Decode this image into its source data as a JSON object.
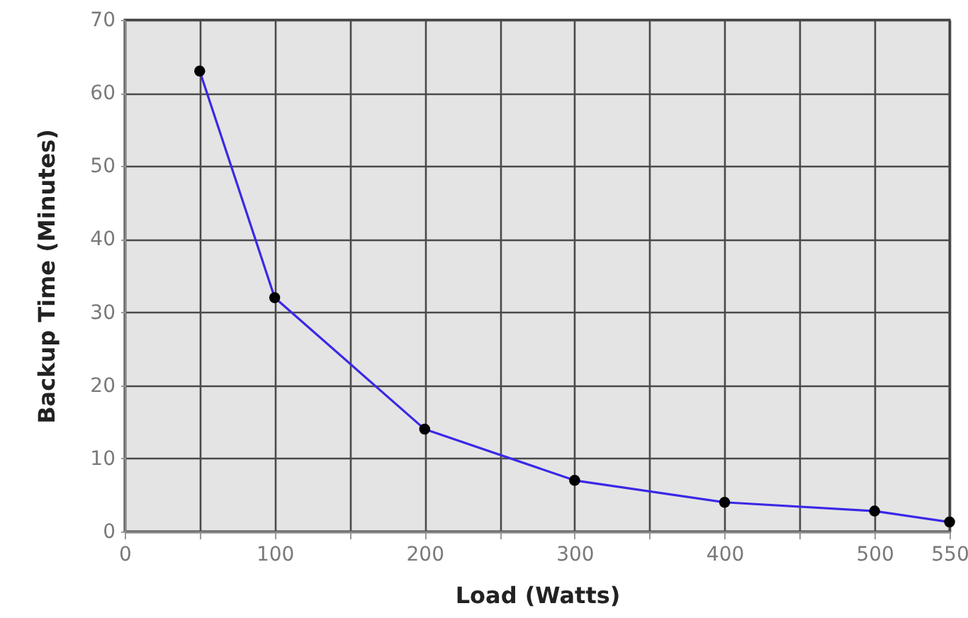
{
  "chart_data": {
    "type": "line",
    "xlabel": "Load (Watts)",
    "ylabel": "Backup Time (Minutes)",
    "x": [
      50,
      100,
      200,
      300,
      400,
      500,
      550
    ],
    "series": [
      {
        "color": "#3b28e6",
        "values": [
          63,
          32,
          14,
          7,
          4,
          2.8,
          1.3
        ]
      }
    ],
    "xlim": [
      0,
      550
    ],
    "ylim": [
      0,
      70
    ],
    "xticks": [
      0,
      {
        "value": 50,
        "label": null
      },
      100,
      {
        "value": 150,
        "label": null
      },
      200,
      {
        "value": 250,
        "label": null
      },
      300,
      {
        "value": 350,
        "label": null
      },
      400,
      {
        "value": 450,
        "label": null
      },
      500,
      550
    ],
    "yticks": [
      0,
      10,
      20,
      30,
      40,
      50,
      60,
      70
    ],
    "grid": true,
    "marker": "circle",
    "line_style": "solid"
  }
}
